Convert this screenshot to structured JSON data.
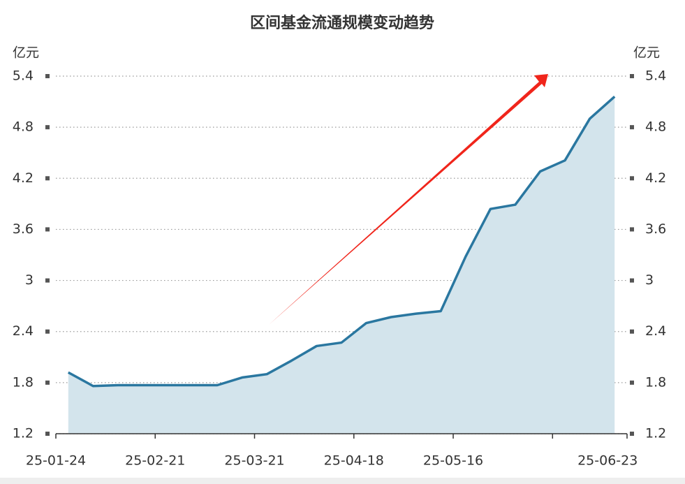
{
  "chart_data": {
    "type": "area",
    "title": "区间基金流通规模变动趋势",
    "ylabel": "亿元",
    "y2label": "亿元",
    "categories": [
      "25-01-24",
      null,
      null,
      null,
      "25-02-21",
      null,
      null,
      null,
      "25-03-21",
      null,
      null,
      null,
      "25-04-18",
      null,
      null,
      null,
      "25-05-16",
      null,
      null,
      null,
      null,
      null,
      "25-06-23"
    ],
    "series": [
      {
        "name": "区间基金流通规模",
        "color": "#2a77a0",
        "values": [
          1.92,
          1.76,
          1.77,
          1.77,
          1.77,
          1.77,
          1.77,
          1.86,
          1.9,
          2.06,
          2.23,
          2.27,
          2.5,
          2.57,
          2.61,
          2.64,
          3.28,
          3.84,
          3.89,
          4.28,
          4.41,
          4.9,
          5.16
        ]
      }
    ],
    "fill": "#d3e4ec",
    "ylim": [
      1.2,
      5.4
    ],
    "yticks": [
      1.2,
      1.8,
      2.4,
      3,
      3.6,
      4.2,
      4.8,
      5.4
    ],
    "y2lim": [
      1.2,
      5.4
    ],
    "y2ticks": [
      1.2,
      1.8,
      2.4,
      3,
      3.6,
      4.2,
      4.8,
      5.4
    ],
    "grid": true
  }
}
